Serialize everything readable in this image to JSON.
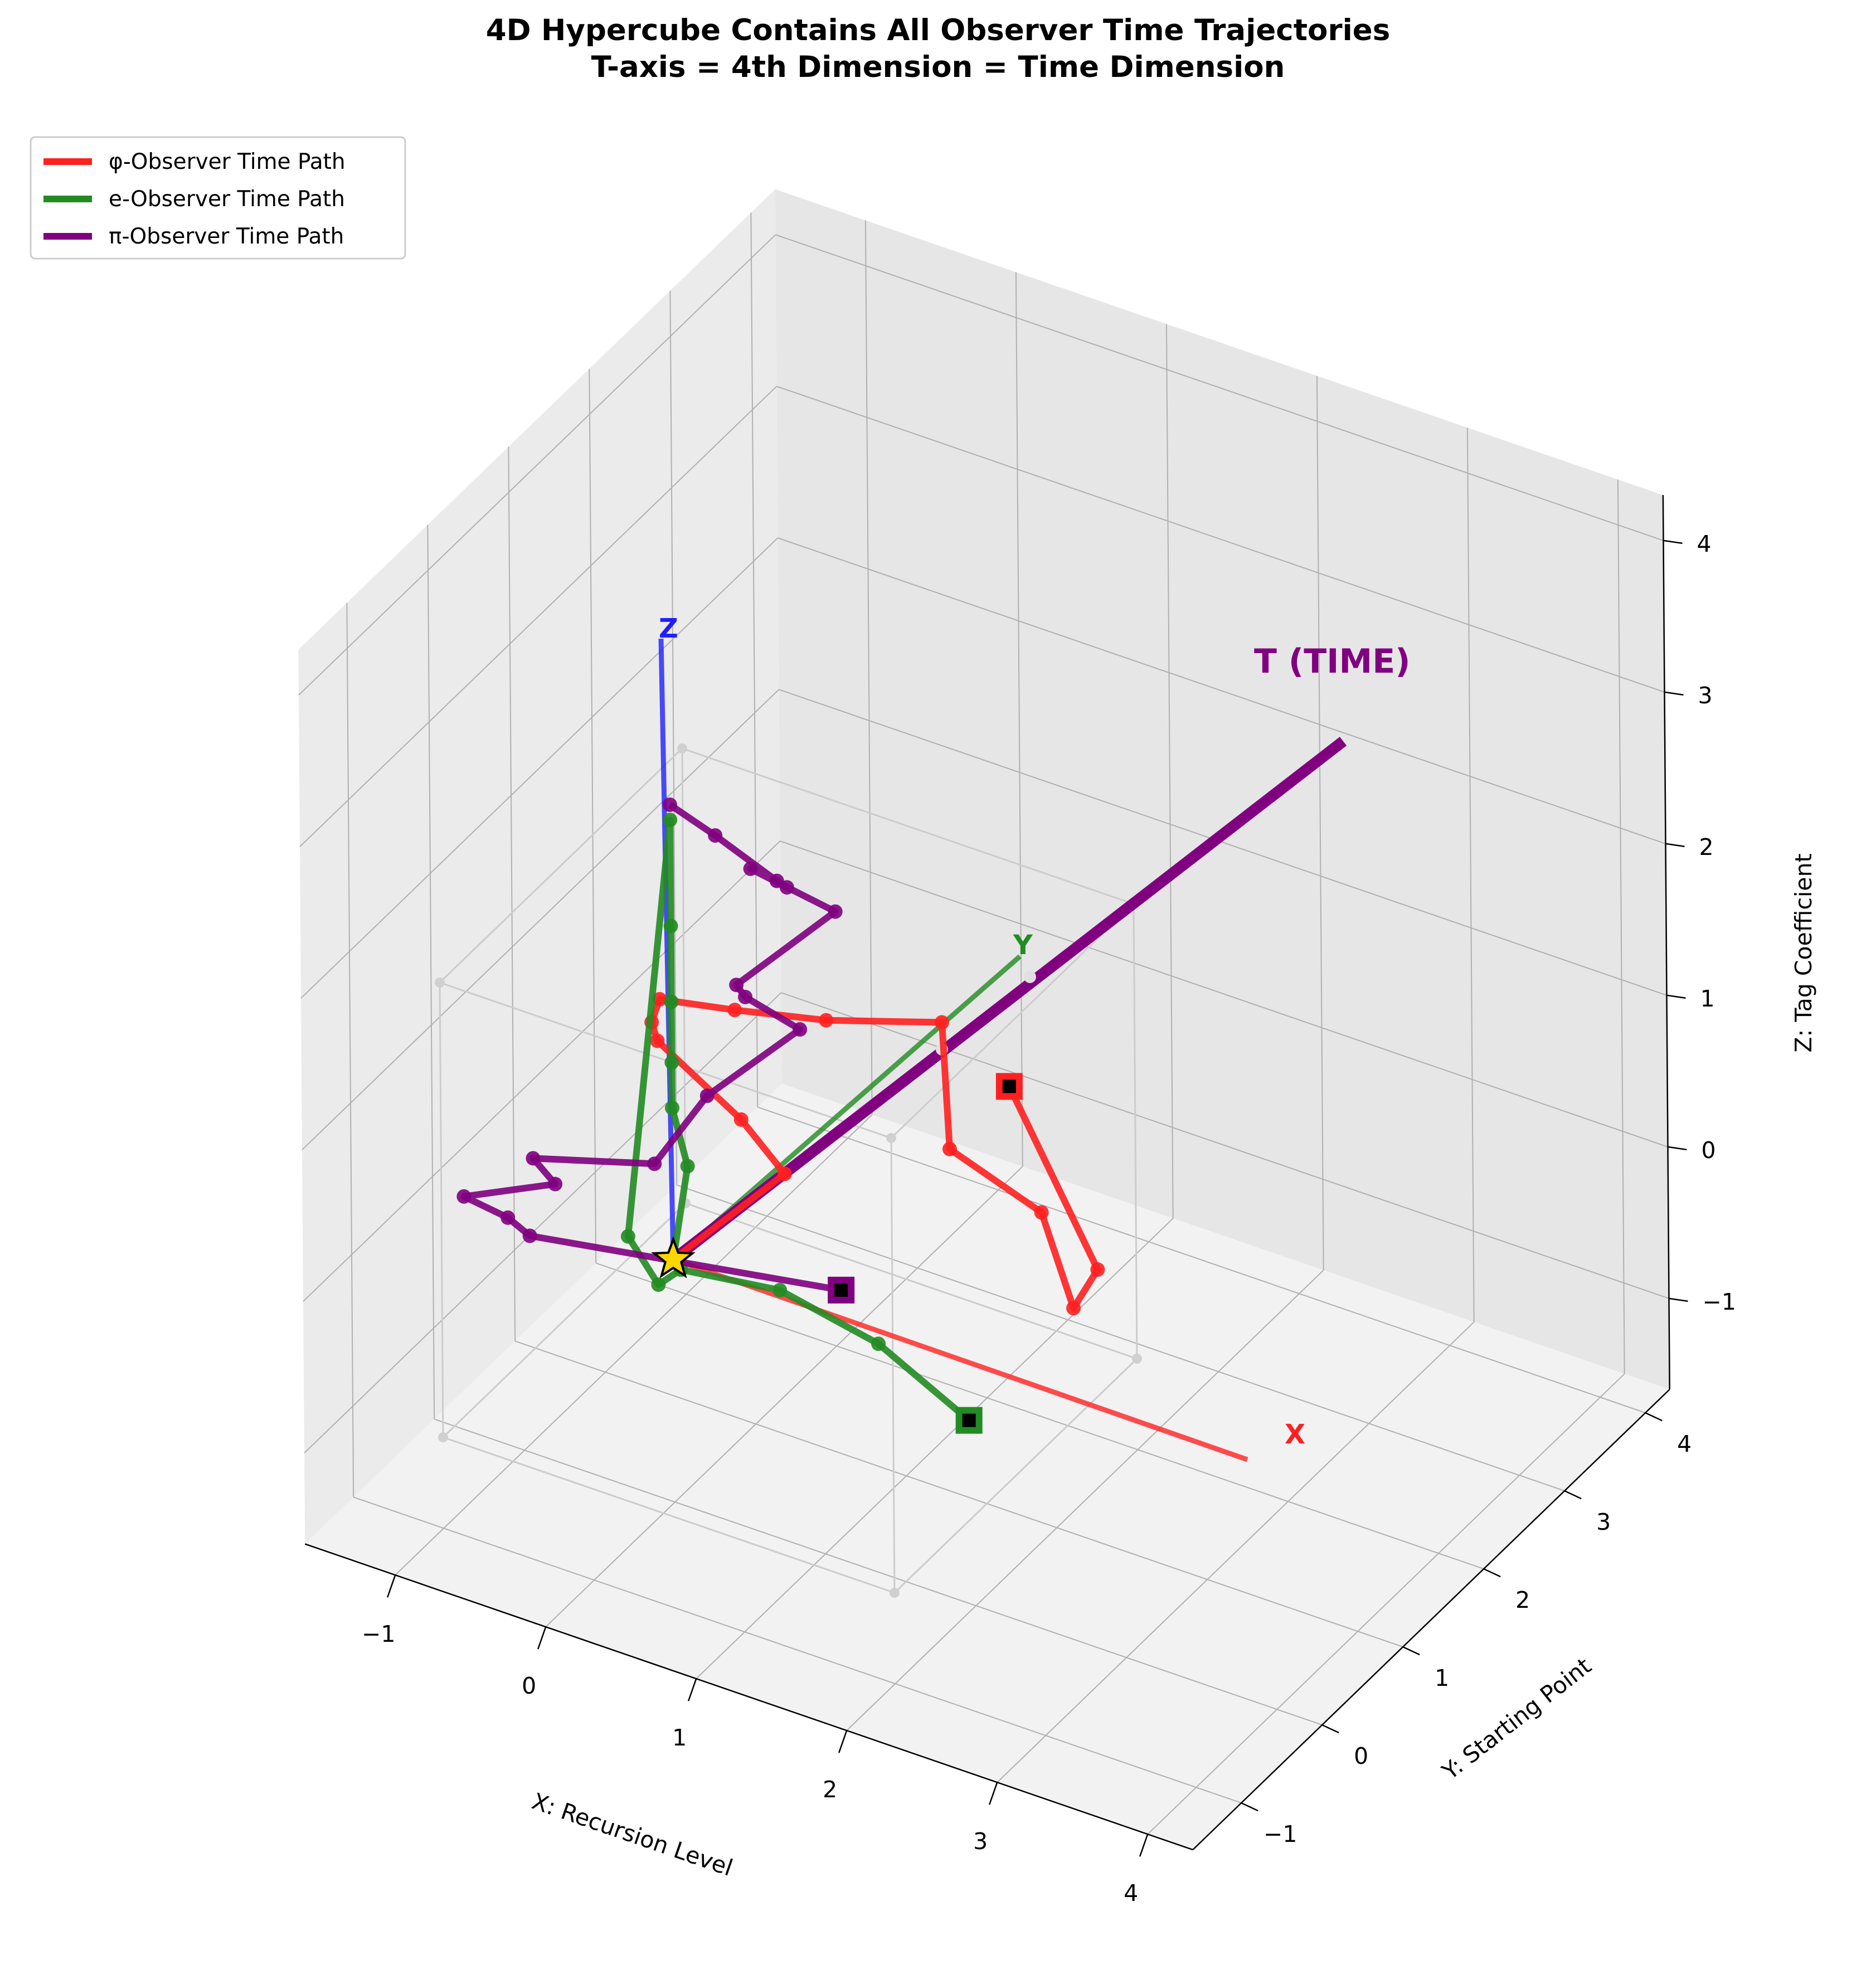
{
  "title_lines": [
    "4D Hypercube Contains All Observer Time Trajectories",
    "T-axis = 4th Dimension = Time Dimension"
  ],
  "chart_data": {
    "type": "line",
    "projection": "3d",
    "xlabel": "X: Recursion Level",
    "ylabel": "Y: Starting Point",
    "zlabel": "Z: Tag Coefficient",
    "xlim": [
      -1.6,
      4.3
    ],
    "ylim": [
      -1.6,
      4.3
    ],
    "zlim": [
      -1.6,
      4.3
    ],
    "x_ticks": [
      "−1",
      "0",
      "1",
      "2",
      "3",
      "4"
    ],
    "y_ticks": [
      "−1",
      "0",
      "1",
      "2",
      "3",
      "4"
    ],
    "z_ticks": [
      "−1",
      "0",
      "1",
      "2",
      "3",
      "4"
    ],
    "grid": true,
    "legend_position": "top-left",
    "legend": [
      {
        "label": "φ-Observer Time Path",
        "color": "#ff2020"
      },
      {
        "label": "e-Observer Time Path",
        "color": "#228b22"
      },
      {
        "label": "π-Observer Time Path",
        "color": "#800080"
      }
    ],
    "axis_tags": [
      {
        "text": "X",
        "color": "#ff2020"
      },
      {
        "text": "Y",
        "color": "#228b22"
      },
      {
        "text": "Z",
        "color": "#1f1fff"
      },
      {
        "text": "T (TIME)",
        "color": "#800080"
      }
    ],
    "series": [
      {
        "name": "φ-Observer Time Path",
        "color": "#ff2020",
        "points": [
          [
            0.0,
            0.0,
            0.0
          ],
          [
            0.15,
            1.1,
            0.05
          ],
          [
            -0.3,
            1.4,
            0.1
          ],
          [
            -0.8,
            1.3,
            0.5
          ],
          [
            -1.0,
            1.6,
            0.4
          ],
          [
            -1.0,
            1.7,
            0.5
          ],
          [
            -0.5,
            1.7,
            0.6
          ],
          [
            0.0,
            1.9,
            0.6
          ],
          [
            0.5,
            2.4,
            0.5
          ],
          [
            0.6,
            2.3,
            -0.25
          ],
          [
            1.1,
            2.5,
            -0.6
          ],
          [
            1.2,
            2.7,
            -1.3
          ],
          [
            1.2,
            3.0,
            -1.2
          ],
          [
            1.0,
            2.3,
            0.3
          ]
        ]
      },
      {
        "name": "e-Observer Time Path",
        "color": "#228b22",
        "points": [
          [
            0.0,
            0.0,
            0.0
          ],
          [
            0.1,
            0.0,
            0.65
          ],
          [
            0.0,
            0.0,
            1.0
          ],
          [
            0.0,
            0.0,
            1.3
          ],
          [
            0.0,
            0.0,
            1.7
          ],
          [
            0.0,
            0.0,
            2.2
          ],
          [
            0.0,
            0.0,
            2.9
          ],
          [
            -0.3,
            0.0,
            0.05
          ],
          [
            -0.1,
            0.0,
            -0.2
          ],
          [
            0.05,
            0.0,
            -0.05
          ],
          [
            0.6,
            0.2,
            -0.1
          ],
          [
            1.2,
            0.3,
            -0.3
          ],
          [
            1.8,
            0.3,
            -0.6
          ]
        ]
      },
      {
        "name": "π-Observer Time Path",
        "color": "#800080",
        "points": [
          [
            0.0,
            0.0,
            3.0
          ],
          [
            0.3,
            0.0,
            2.9
          ],
          [
            0.6,
            0.2,
            2.6
          ],
          [
            0.45,
            0.6,
            2.3
          ],
          [
            0.1,
            0.8,
            2.2
          ],
          [
            0.5,
            1.1,
            1.9
          ],
          [
            0.0,
            0.8,
            1.4
          ],
          [
            -0.05,
            1.0,
            1.2
          ],
          [
            0.15,
            1.3,
            0.9
          ],
          [
            -0.2,
            0.8,
            0.6
          ],
          [
            -0.5,
            0.7,
            0.1
          ],
          [
            -1.2,
            0.5,
            0.0
          ],
          [
            -1.0,
            0.4,
            -0.05
          ],
          [
            -1.5,
            0.2,
            -0.2
          ],
          [
            -1.1,
            0.0,
            -0.1
          ],
          [
            -0.9,
            -0.1,
            -0.1
          ],
          [
            0.9,
            0.4,
            -0.1
          ]
        ]
      }
    ],
    "hypercube_vertices": [
      [
        -1,
        -1,
        -1
      ],
      [
        2,
        -1,
        -1
      ],
      [
        2,
        2,
        -1
      ],
      [
        -1,
        2,
        -1
      ],
      [
        -1,
        -1,
        2
      ],
      [
        2,
        -1,
        2
      ],
      [
        2,
        2,
        2
      ],
      [
        -1,
        2,
        2
      ]
    ]
  }
}
